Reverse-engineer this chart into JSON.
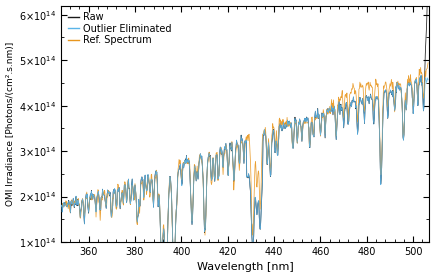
{
  "xlabel": "Wavelength [nm]",
  "ylabel": "OMI Irradiance [Photons/(cm².s.nm)]",
  "xlim": [
    348,
    507
  ],
  "ylim": [
    100000000000000.0,
    620000000000000.0
  ],
  "xticks": [
    360,
    380,
    400,
    420,
    440,
    460,
    480,
    500
  ],
  "yticks": [
    100000000000000.0,
    200000000000000.0,
    300000000000000.0,
    400000000000000.0,
    500000000000000.0,
    600000000000000.0
  ],
  "legend_labels": [
    "Raw",
    "Outlier Eliminated",
    "Ref. Spectrum"
  ],
  "raw_color": "#1a1a1a",
  "outlier_color": "#5ab4e8",
  "ref_color": "#e8961e",
  "background_color": "#ffffff",
  "line_width": 0.55,
  "seed": 42,
  "wavelength_start": 348.0,
  "wavelength_end": 506.5,
  "wavelength_step": 0.2
}
